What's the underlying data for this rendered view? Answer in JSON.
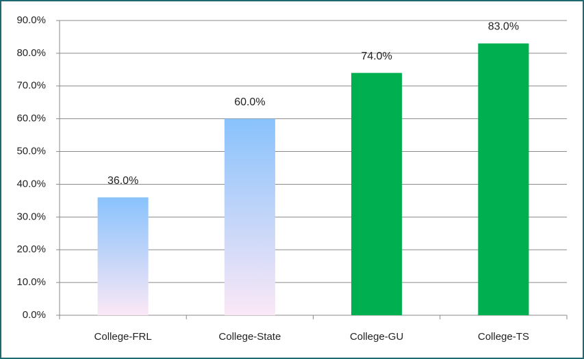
{
  "chart_data": {
    "type": "bar",
    "categories": [
      "College-FRL",
      "College-State",
      "College-GU",
      "College-TS"
    ],
    "values": [
      36,
      60,
      74,
      83
    ],
    "value_labels": [
      "36.0%",
      "60.0%",
      "74.0%",
      "83.0%"
    ],
    "colors": [
      [
        "#89c2fc",
        "#fbe8f6"
      ],
      [
        "#89c2fc",
        "#fbe8f6"
      ],
      "#00b050",
      "#00b050"
    ],
    "ylim": [
      0,
      90
    ],
    "yticks": [
      {
        "value": 0,
        "label": "0.0%"
      },
      {
        "value": 10,
        "label": "10.0%"
      },
      {
        "value": 20,
        "label": "20.0%"
      },
      {
        "value": 30,
        "label": "30.0%"
      },
      {
        "value": 40,
        "label": "40.0%"
      },
      {
        "value": 50,
        "label": "50.0%"
      },
      {
        "value": 60,
        "label": "60.0%"
      },
      {
        "value": 70,
        "label": "70.0%"
      },
      {
        "value": 80,
        "label": "80.0%"
      },
      {
        "value": 90,
        "label": "90.0%"
      }
    ],
    "grid": true
  }
}
